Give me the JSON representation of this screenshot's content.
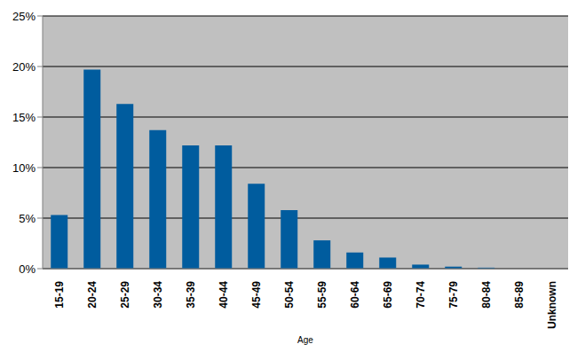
{
  "chart_data": {
    "type": "bar",
    "x_label": "Age",
    "categories": [
      "15-19",
      "20-24",
      "25-29",
      "30-34",
      "35-39",
      "40-44",
      "45-49",
      "50-54",
      "55-59",
      "60-64",
      "65-69",
      "70-74",
      "75-79",
      "80-84",
      "85-89",
      "Unknown"
    ],
    "values": [
      5.3,
      19.7,
      16.3,
      13.7,
      12.2,
      12.2,
      8.4,
      5.8,
      2.8,
      1.6,
      1.1,
      0.4,
      0.2,
      0.1,
      0,
      0
    ],
    "color": "#005c9e",
    "ylim": [
      0,
      25
    ],
    "yticks": [
      {
        "value": 0,
        "label": "0%"
      },
      {
        "value": 5,
        "label": "5%"
      },
      {
        "value": 10,
        "label": "10%"
      },
      {
        "value": 15,
        "label": "15%"
      },
      {
        "value": 20,
        "label": "20%"
      },
      {
        "value": 25,
        "label": "25%"
      }
    ],
    "grid": true
  }
}
